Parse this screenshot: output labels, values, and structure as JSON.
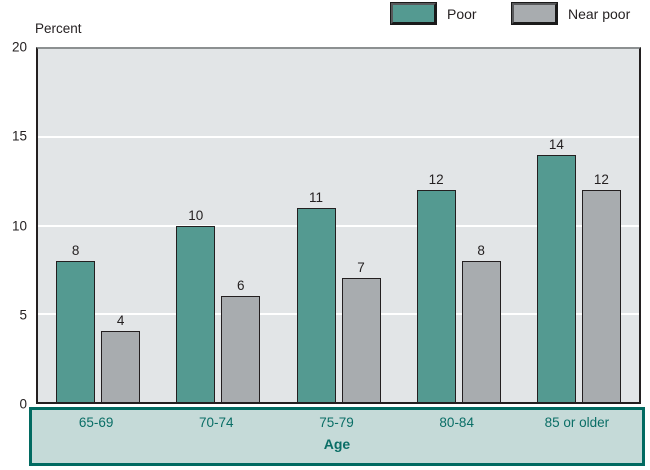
{
  "chart_data": {
    "type": "bar",
    "title": "",
    "unit_label": "Percent",
    "xlabel": "Age",
    "categories": [
      "65-69",
      "70-74",
      "75-79",
      "80-84",
      "85 or older"
    ],
    "series": [
      {
        "name": "Poor",
        "color": "#549A91",
        "values": [
          8,
          10,
          11,
          12,
          14
        ]
      },
      {
        "name": "Near poor",
        "color": "#A8ACAF",
        "values": [
          4,
          6,
          7,
          8,
          12
        ]
      }
    ],
    "ylim": [
      0,
      20
    ],
    "yticks": [
      0,
      5,
      10,
      15,
      20
    ],
    "gridlines_at": [
      5,
      10,
      15
    ],
    "value_labels_shown": true,
    "legend_position": "top-right"
  },
  "colors": {
    "page_background": "#FFFFFF",
    "plot_background": "#E2E5E7",
    "plot_border": "#231F20",
    "plot_border_top": "#8C9091",
    "grid_color": "#FFFFFF",
    "bar_outline": "#231F20",
    "age_box_background": "#C5DAD8",
    "age_box_border": "#016A61",
    "age_text": "#0A6E66",
    "text": "#231F20"
  }
}
